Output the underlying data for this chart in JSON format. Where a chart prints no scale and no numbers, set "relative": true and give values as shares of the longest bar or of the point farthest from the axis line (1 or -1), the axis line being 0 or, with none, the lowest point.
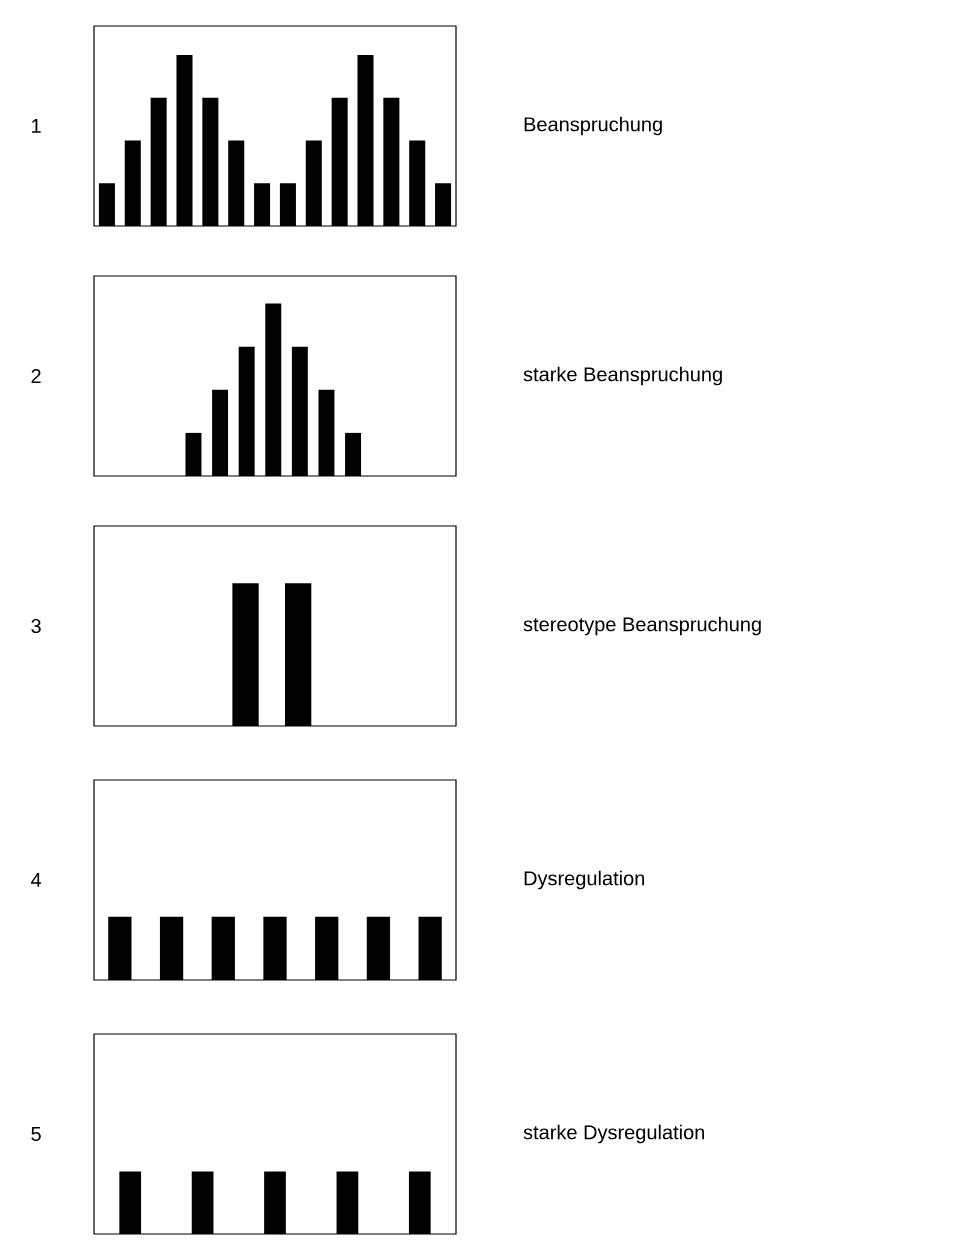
{
  "chart_data": [
    {
      "type": "bar",
      "ylabel": "1",
      "annotations": [
        "Beanspruchung"
      ],
      "categories": [
        null,
        null,
        null,
        null,
        null,
        null,
        null,
        null,
        null,
        null,
        null,
        null,
        null,
        null
      ],
      "values": [
        0.25,
        0.5,
        0.75,
        1,
        0.75,
        0.5,
        0.25,
        0.25,
        0.5,
        0.75,
        1,
        0.75,
        0.5,
        0.25
      ],
      "color": "#000000",
      "relative": true
    },
    {
      "type": "bar",
      "ylabel": "2",
      "annotations": [
        "starke Beanspruchung"
      ],
      "categories": [
        null,
        null,
        null,
        null,
        null,
        null,
        null
      ],
      "values": [
        0.25,
        0.5,
        0.75,
        1,
        0.75,
        0.5,
        0.25
      ],
      "color": "#000000",
      "relative": true
    },
    {
      "type": "bar",
      "ylabel": "3",
      "annotations": [
        "stereotype Beanspruchung"
      ],
      "categories": [
        null,
        null
      ],
      "values": [
        1,
        1
      ],
      "color": "#000000",
      "relative": true
    },
    {
      "type": "bar",
      "ylabel": "4",
      "annotations": [
        "Dysregulation"
      ],
      "categories": [
        null,
        null,
        null,
        null,
        null,
        null,
        null
      ],
      "values": [
        1,
        1,
        1,
        1,
        1,
        1,
        1
      ],
      "color": "#000000",
      "relative": true
    },
    {
      "type": "bar",
      "ylabel": "5",
      "annotations": [
        "starke Dysregulation"
      ],
      "categories": [
        null,
        null,
        null,
        null,
        null
      ],
      "values": [
        1,
        1,
        1,
        1,
        1
      ],
      "color": "#000000",
      "relative": true
    }
  ]
}
